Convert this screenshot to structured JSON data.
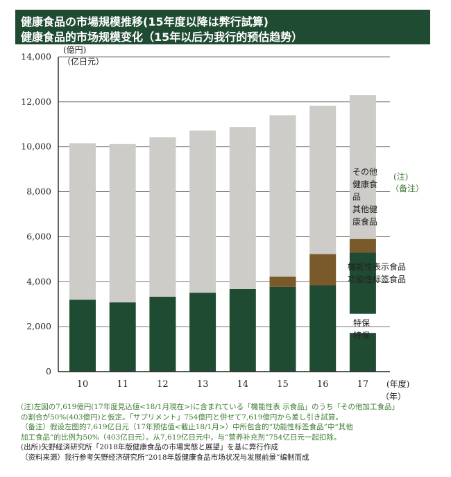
{
  "title": {
    "line1": "健康食品の市場規模推移(15年度以降は弊行試算)",
    "line2": "健康食品的市场规模变化（15年以后为我行的预估趋势）"
  },
  "chart_data": {
    "type": "bar",
    "stacked": true,
    "title": "健康食品の市場規模推移(15年度以降は弊行試算)",
    "ylabel": "(億円)",
    "ylabel_cn": "（亿日元）",
    "xlabel": "(年度)",
    "xlabel_cn": "（年）",
    "ylim": [
      0,
      14000
    ],
    "yticks": [
      "0",
      "2,000",
      "4,000",
      "6,000",
      "8,000",
      "10,000",
      "12,000",
      "14,000"
    ],
    "categories": [
      "10",
      "11",
      "12",
      "13",
      "14",
      "15",
      "16",
      "17"
    ],
    "series": [
      {
        "name": "特保",
        "name_cn": "特保",
        "color": "#1f4b33",
        "values": [
          3200,
          3080,
          3330,
          3510,
          3670,
          3770,
          3840,
          1720
        ]
      },
      {
        "name": "機能性表示食品",
        "name_cn": "功能性标签食品",
        "color": "#7a5a2a",
        "values": [
          0,
          0,
          0,
          0,
          0,
          460,
          1390,
          600
        ]
      },
      {
        "name": "その他健康食品",
        "name_cn": "其他健康食品",
        "color": "#cdccc8",
        "values": [
          6960,
          7040,
          7090,
          7210,
          7210,
          7170,
          6590,
          6400
        ]
      }
    ],
    "segment_17_middle": {
      "color": "#1f4b33",
      "values": [
        2730
      ]
    }
  },
  "legend": {
    "other_jp_1": "その他",
    "other_jp_2": "健康食",
    "other_jp_3": "品",
    "other_cn_1": "其他健",
    "other_cn_2": "康食品",
    "func_jp": "機能性表示食品",
    "func_cn": "功能性标签食品",
    "toku_jp": "特保",
    "toku_cn": "特保",
    "note_jp": "(注)",
    "note_cn": "（备注）"
  },
  "notes": {
    "n1": "(注)左図の7,619億円(17年度見込値<18/1月現在>)に含まれている「機能性表 示食品」のうち「その他加工食品」",
    "n2": "の割合が50%(403億円)と仮定。「サプリメント」754億円と併せて7,619億円から差し引き試算。",
    "n3": "（备注）假设左图的7,619亿日元（17年预估值<截止18/1月>）中所包含的“功能性标签食品”中“其他",
    "n4": "加工食品”的比例为50%（403亿日元）。从7,619亿日元中，与“营养补充剂”754亿日元一起扣除。",
    "n5": "(出所)矢野経済研究所「2018年版健康食品の市場実態と展望」を基に弊行作成",
    "n6": "（资料来源）我行参考矢野经济研究所“2018年版健康食品市场状况与发展前景”编制而成"
  }
}
